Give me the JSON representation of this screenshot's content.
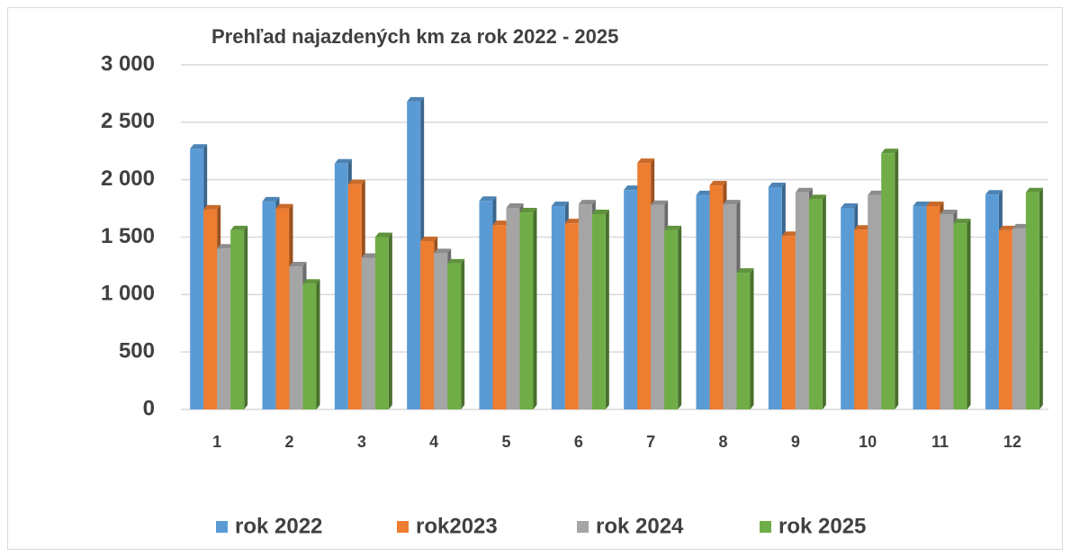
{
  "chart_data": {
    "type": "bar3d",
    "title": "Prehľad najazdených km za rok 2022 - 2025",
    "categories": [
      "1",
      "2",
      "3",
      "4",
      "5",
      "6",
      "7",
      "8",
      "9",
      "10",
      "11",
      "12"
    ],
    "series": [
      {
        "name": "rok 2022",
        "color": "#5b9bd5",
        "values": [
          2270,
          1810,
          2140,
          2680,
          1815,
          1770,
          1910,
          1865,
          1935,
          1755,
          1770,
          1870
        ]
      },
      {
        "name": "rok2023",
        "color": "#ed7d31",
        "values": [
          1740,
          1750,
          1960,
          1465,
          1605,
          1620,
          2145,
          1950,
          1510,
          1565,
          1770,
          1560
        ]
      },
      {
        "name": "rok 2024",
        "color": "#a5a5a5",
        "values": [
          1400,
          1245,
          1320,
          1360,
          1755,
          1785,
          1780,
          1785,
          1890,
          1865,
          1700,
          1575
        ]
      },
      {
        "name": "rok 2025",
        "color": "#70ad47",
        "values": [
          1560,
          1095,
          1500,
          1270,
          1715,
          1700,
          1560,
          1190,
          1830,
          2230,
          1620,
          1890
        ]
      }
    ],
    "ylim": [
      0,
      3000
    ],
    "yticks": [
      0,
      500,
      {
        "value": 1000,
        "label": "1 000"
      },
      {
        "value": 1500,
        "label": "1 500"
      },
      {
        "value": 2000,
        "label": "2 000"
      },
      {
        "value": 2500,
        "label": "2 500"
      },
      {
        "value": 3000,
        "label": "3 000"
      }
    ],
    "grid": true,
    "legend": "bottom"
  }
}
